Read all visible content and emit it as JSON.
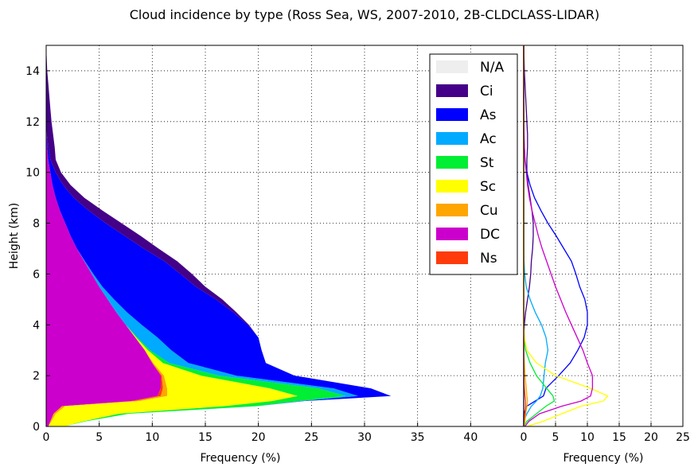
{
  "title": "Cloud incidence by type (Ross Sea, WS, 2007-2010, 2B-CLDCLASS-LIDAR)",
  "chart_data": [
    {
      "type": "area",
      "stacked": true,
      "orientation": "horizontal",
      "xlabel": "Frequency (%)",
      "ylabel": "Height (km)",
      "xlim": [
        0,
        45
      ],
      "ylim": [
        0,
        15
      ],
      "xticks": [
        "0",
        "5",
        "10",
        "15",
        "20",
        "25",
        "30",
        "35",
        "40"
      ],
      "yticks": [
        "0",
        "2",
        "4",
        "6",
        "8",
        "10",
        "12",
        "14"
      ],
      "grid": true,
      "legend_position": "top-right",
      "heights": [
        0,
        0.2,
        0.5,
        0.8,
        1.0,
        1.2,
        1.5,
        2.0,
        2.5,
        3.0,
        3.5,
        4.0,
        4.5,
        5.0,
        5.5,
        6.0,
        6.5,
        7.0,
        7.5,
        8.0,
        8.5,
        9.0,
        9.5,
        10.0,
        10.5,
        11.0,
        11.5,
        12.0,
        12.5,
        13.0,
        13.5,
        14.0,
        14.5,
        15.0
      ],
      "series": [
        {
          "name": "N/A",
          "color": "#eeeeee",
          "values": [
            0,
            0,
            0,
            0,
            0,
            0,
            0,
            0,
            0,
            0,
            0,
            0,
            0,
            0,
            0,
            0,
            0,
            0,
            0,
            0,
            0,
            0,
            0,
            0,
            0,
            0,
            0,
            0,
            0,
            0,
            0,
            0,
            0,
            0
          ]
        },
        {
          "name": "DC",
          "color": "#cc00cc",
          "values": [
            0.2,
            0.4,
            0.7,
            1.5,
            8.0,
            10.5,
            10.8,
            10.8,
            10.0,
            9.3,
            8.4,
            7.5,
            6.6,
            5.8,
            5.0,
            4.3,
            3.6,
            2.9,
            2.3,
            1.8,
            1.3,
            0.9,
            0.6,
            0.4,
            0.2,
            0.1,
            0.05,
            0,
            0,
            0,
            0,
            0,
            0,
            0
          ]
        },
        {
          "name": "Ns",
          "color": "#ff3b0b",
          "values": [
            0,
            0,
            0,
            0,
            0.3,
            0.3,
            0.2,
            0.1,
            0,
            0,
            0,
            0,
            0,
            0,
            0,
            0,
            0,
            0,
            0,
            0,
            0,
            0,
            0,
            0,
            0,
            0,
            0,
            0,
            0,
            0,
            0,
            0,
            0,
            0
          ]
        },
        {
          "name": "Cu",
          "color": "#ffa500",
          "values": [
            0,
            0.1,
            0.2,
            0.3,
            0.5,
            0.6,
            0.4,
            0.2,
            0.1,
            0,
            0,
            0,
            0,
            0,
            0,
            0,
            0,
            0,
            0,
            0,
            0,
            0,
            0,
            0,
            0,
            0,
            0,
            0,
            0,
            0,
            0,
            0,
            0,
            0
          ]
        },
        {
          "name": "Sc",
          "color": "#ffff00",
          "values": [
            1.5,
            3.0,
            6.0,
            15.0,
            12.5,
            12.3,
            9.7,
            3.5,
            0.9,
            0.3,
            0.1,
            0,
            0,
            0,
            0,
            0,
            0,
            0,
            0,
            0,
            0,
            0,
            0,
            0,
            0,
            0,
            0,
            0,
            0,
            0,
            0,
            0,
            0,
            0
          ]
        },
        {
          "name": "St",
          "color": "#00ee33",
          "values": [
            0,
            0.2,
            0.9,
            3.0,
            2.5,
            4.5,
            4.6,
            1.7,
            0.6,
            0.2,
            0.1,
            0,
            0,
            0,
            0,
            0,
            0,
            0,
            0,
            0,
            0,
            0,
            0,
            0,
            0,
            0,
            0,
            0,
            0,
            0,
            0,
            0,
            0,
            0
          ]
        },
        {
          "name": "Ac",
          "color": "#00aaff",
          "values": [
            0,
            0,
            0,
            0.1,
            0.3,
            1.2,
            1.4,
            1.6,
            1.8,
            2.0,
            1.9,
            1.5,
            1.0,
            0.6,
            0.3,
            0.15,
            0.05,
            0,
            0,
            0,
            0,
            0,
            0,
            0,
            0,
            0,
            0,
            0,
            0,
            0,
            0,
            0,
            0,
            0
          ]
        },
        {
          "name": "As",
          "color": "#0000ff",
          "values": [
            0,
            0,
            0,
            0,
            0.2,
            3.1,
            3.5,
            5.5,
            7.3,
            8.5,
            9.5,
            10.0,
            10.0,
            9.6,
            8.8,
            8.2,
            7.5,
            6.3,
            5.1,
            3.8,
            2.7,
            1.7,
            1.0,
            0.5,
            0.2,
            0.1,
            0,
            0,
            0,
            0,
            0,
            0,
            0,
            0
          ]
        },
        {
          "name": "Ci",
          "color": "#440088",
          "values": [
            0,
            0,
            0,
            0,
            0,
            0,
            0,
            0,
            0,
            0,
            0,
            0.1,
            0.3,
            0.6,
            0.9,
            1.1,
            1.2,
            1.4,
            1.5,
            1.5,
            1.3,
            1.0,
            0.7,
            0.5,
            0.5,
            0.6,
            0.6,
            0.5,
            0.4,
            0.3,
            0.2,
            0.1,
            0.05,
            0
          ]
        }
      ]
    },
    {
      "type": "line",
      "orientation": "horizontal",
      "xlabel": "Frequency (%)",
      "xlim": [
        0,
        25
      ],
      "ylim": [
        0,
        15
      ],
      "xticks": [
        "0",
        "5",
        "10",
        "15",
        "20",
        "25"
      ],
      "grid": true,
      "heights": [
        0,
        0.2,
        0.5,
        0.8,
        1.0,
        1.2,
        1.5,
        2.0,
        2.5,
        3.0,
        3.5,
        4.0,
        4.5,
        5.0,
        5.5,
        6.0,
        6.5,
        7.0,
        7.5,
        8.0,
        8.5,
        9.0,
        9.5,
        10.0,
        10.5,
        11.0,
        11.5,
        12.0,
        12.5,
        13.0,
        13.5,
        14.0,
        14.5,
        15.0
      ],
      "series": [
        {
          "color": "#440088",
          "values": [
            0,
            0,
            0,
            0,
            0,
            0,
            0,
            0,
            0,
            0,
            0,
            0.1,
            0.3,
            0.6,
            0.9,
            1.1,
            1.2,
            1.4,
            1.5,
            1.5,
            1.3,
            1.0,
            0.7,
            0.5,
            0.5,
            0.6,
            0.6,
            0.5,
            0.4,
            0.3,
            0.2,
            0.1,
            0.05,
            0
          ]
        },
        {
          "color": "#0000ff",
          "values": [
            0,
            0,
            0,
            0.5,
            1.8,
            3.1,
            3.5,
            5.5,
            7.3,
            8.5,
            9.5,
            10.0,
            10.0,
            9.6,
            8.8,
            8.2,
            7.5,
            6.3,
            5.1,
            3.8,
            2.7,
            1.7,
            1.0,
            0.5,
            0.2,
            0.1,
            0,
            0,
            0,
            0,
            0,
            0,
            0,
            0
          ]
        },
        {
          "color": "#00aaff",
          "values": [
            0,
            0,
            0.5,
            1.2,
            2.0,
            2.6,
            3.0,
            3.2,
            3.4,
            3.8,
            3.5,
            2.8,
            1.8,
            1.0,
            0.4,
            0.15,
            0.05,
            0,
            0,
            0,
            0,
            0,
            0,
            0,
            0,
            0,
            0,
            0,
            0,
            0,
            0,
            0,
            0,
            0
          ]
        },
        {
          "color": "#00ee33",
          "values": [
            0,
            0.5,
            2.0,
            3.5,
            4.8,
            4.6,
            3.6,
            2.0,
            1.0,
            0.3,
            0.1,
            0,
            0,
            0,
            0,
            0,
            0,
            0,
            0,
            0,
            0,
            0,
            0,
            0,
            0,
            0,
            0,
            0,
            0,
            0,
            0,
            0,
            0,
            0
          ]
        },
        {
          "color": "#ffff00",
          "values": [
            0.5,
            3.0,
            6.0,
            9.0,
            12.5,
            13.2,
            10.5,
            5.0,
            2.0,
            0.5,
            0.1,
            0,
            0,
            0,
            0,
            0,
            0,
            0,
            0,
            0,
            0,
            0,
            0,
            0,
            0,
            0,
            0,
            0,
            0,
            0,
            0,
            0,
            0,
            0
          ]
        },
        {
          "color": "#ffa500",
          "values": [
            0,
            0.2,
            0.3,
            0.5,
            0.6,
            0.5,
            0.4,
            0.2,
            0.1,
            0,
            0,
            0,
            0,
            0,
            0,
            0,
            0,
            0,
            0,
            0,
            0,
            0,
            0,
            0,
            0,
            0,
            0,
            0,
            0,
            0,
            0,
            0,
            0,
            0
          ]
        },
        {
          "color": "#cc00cc",
          "values": [
            0.2,
            0.8,
            2.5,
            6.0,
            9.0,
            10.5,
            10.8,
            10.8,
            10.0,
            9.3,
            8.4,
            7.5,
            6.6,
            5.8,
            5.0,
            4.3,
            3.6,
            2.9,
            2.3,
            1.8,
            1.3,
            0.9,
            0.6,
            0.4,
            0.2,
            0.1,
            0.05,
            0,
            0,
            0,
            0,
            0,
            0,
            0
          ]
        },
        {
          "color": "#ff3b0b",
          "values": [
            0,
            0,
            0.2,
            0.3,
            0.3,
            0.2,
            0.1,
            0,
            0,
            0,
            0,
            0,
            0,
            0,
            0,
            0,
            0,
            0,
            0,
            0,
            0,
            0,
            0,
            0,
            0,
            0,
            0,
            0,
            0,
            0,
            0,
            0,
            0,
            0
          ]
        }
      ]
    }
  ]
}
